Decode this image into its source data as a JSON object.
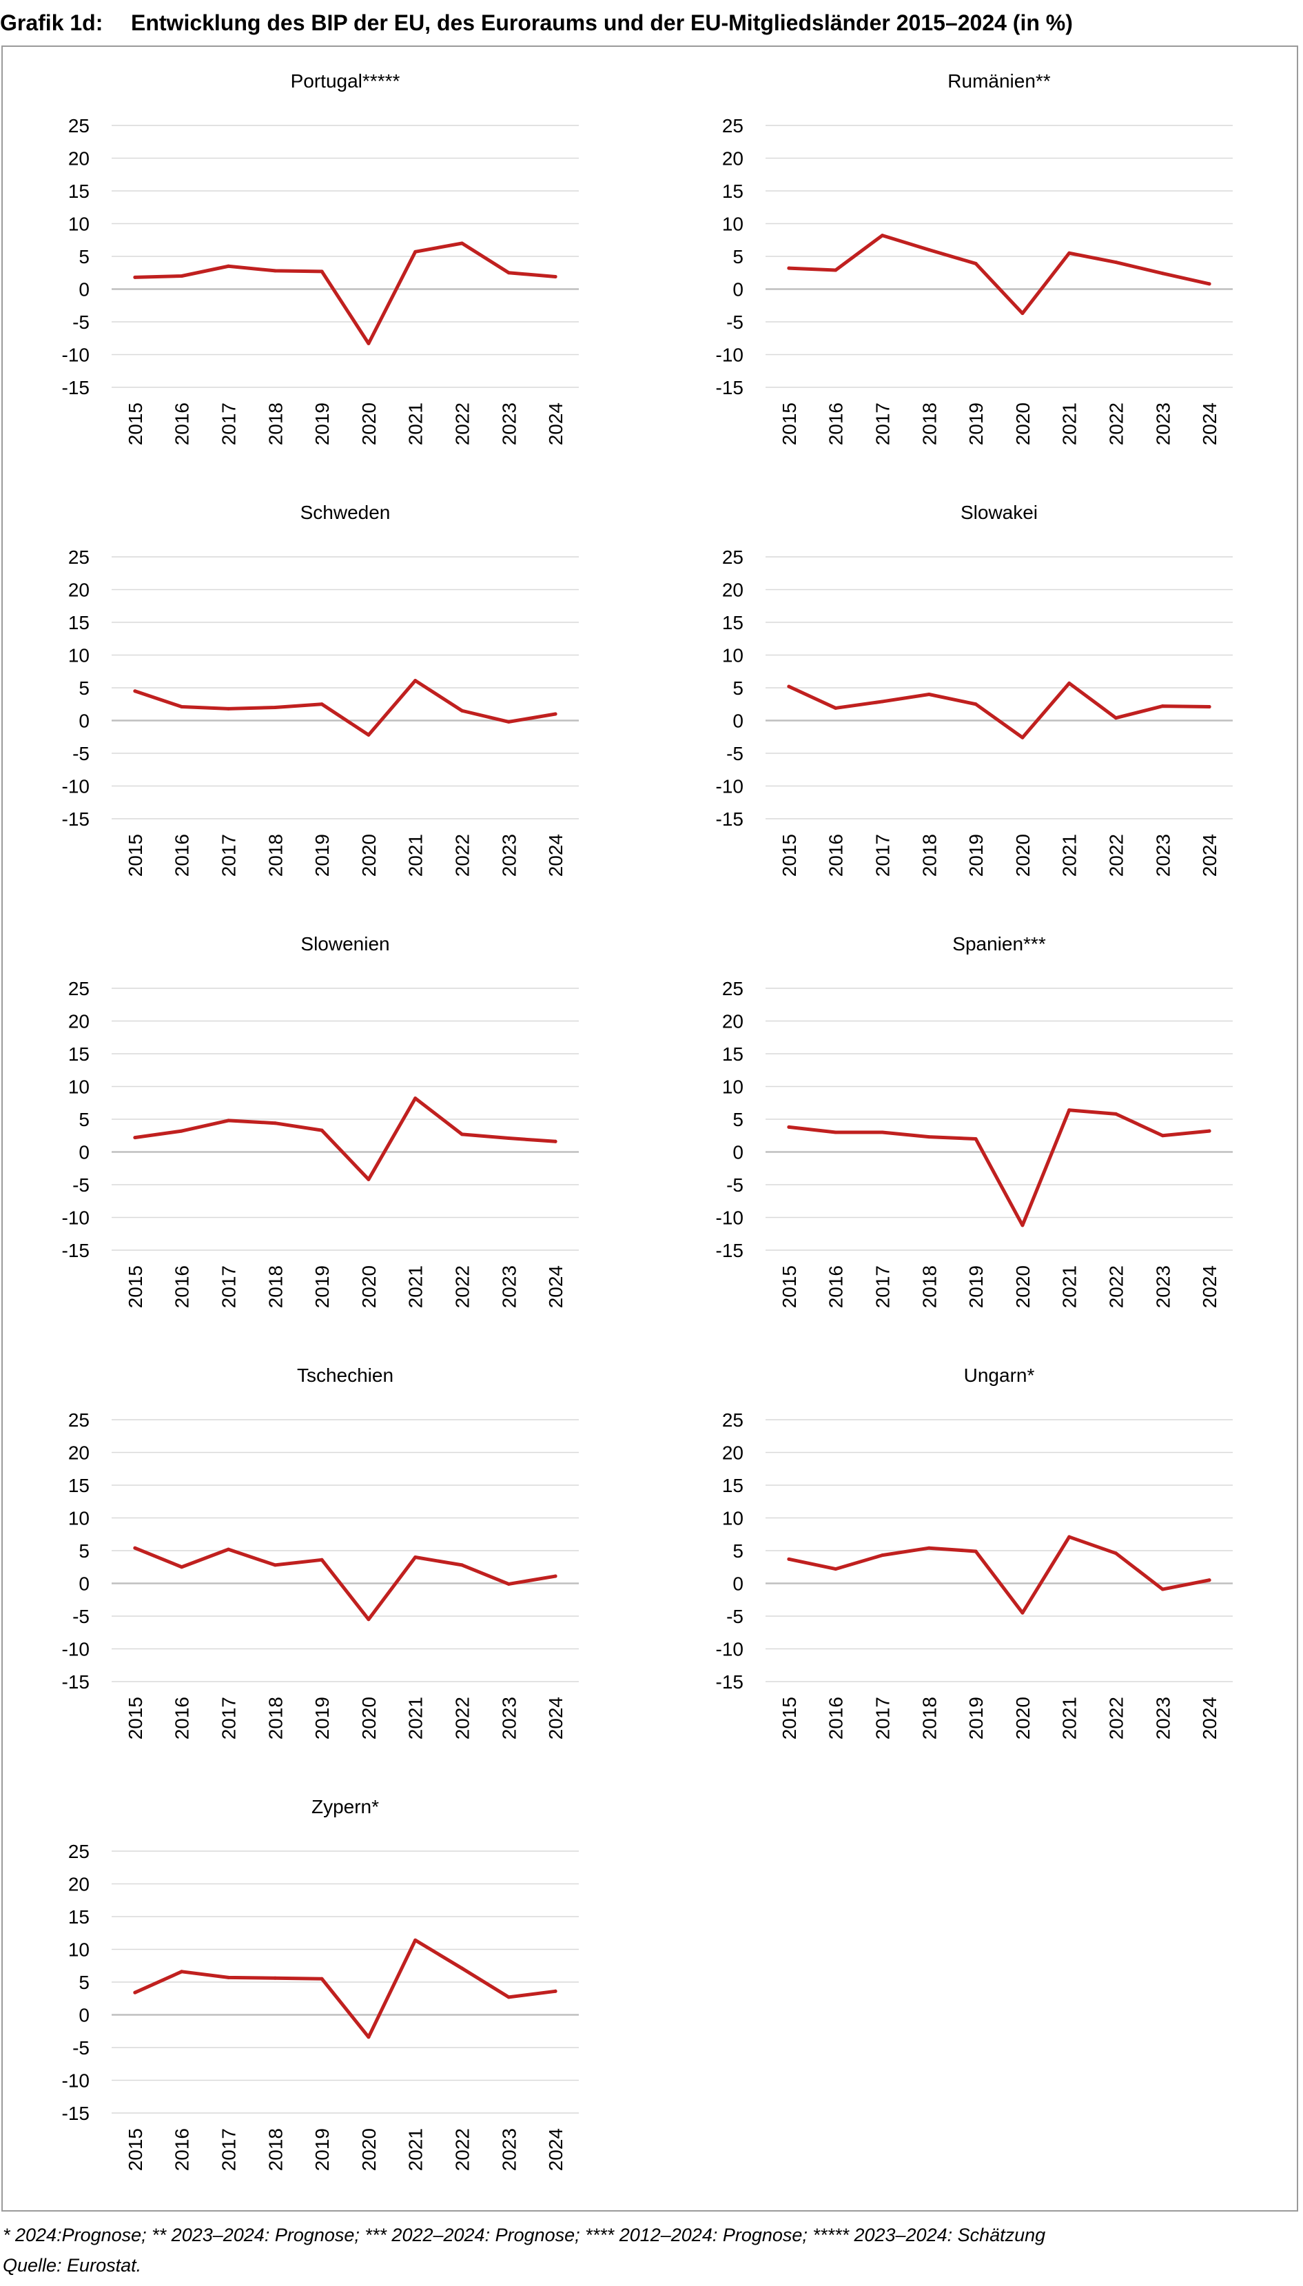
{
  "header": {
    "label": "Grafik 1d:",
    "title": "Entwicklung des BIP der EU, des Euroraums und der EU-Mitgliedsländer 2015–2024 (in %)"
  },
  "footnotes": {
    "note": "* 2024:Prognose; ** 2023–2024: Prognose; *** 2022–2024: Prognose; **** 2012–2024: Prognose; ***** 2023–2024: Schätzung",
    "source": "Quelle: Eurostat."
  },
  "colors": {
    "line": "#c0201f",
    "grid": "#d9d9d9",
    "axis": "#bfbfbf"
  },
  "chart_data": [
    {
      "type": "line",
      "title": "Portugal*****",
      "x": [
        "2015",
        "2016",
        "2017",
        "2018",
        "2019",
        "2020",
        "2021",
        "2022",
        "2023",
        "2024"
      ],
      "values": [
        1.8,
        2.0,
        3.5,
        2.8,
        2.7,
        -8.3,
        5.7,
        7.0,
        2.5,
        1.9
      ],
      "ylim": [
        -15,
        25
      ],
      "yticks": [
        25,
        20,
        15,
        10,
        5,
        0,
        -5,
        -10,
        -15
      ]
    },
    {
      "type": "line",
      "title": "Rumänien**",
      "x": [
        "2015",
        "2016",
        "2017",
        "2018",
        "2019",
        "2020",
        "2021",
        "2022",
        "2023",
        "2024"
      ],
      "values": [
        3.2,
        2.9,
        8.2,
        6.0,
        3.9,
        -3.7,
        5.5,
        4.1,
        2.4,
        0.8
      ],
      "ylim": [
        -15,
        25
      ],
      "yticks": [
        25,
        20,
        15,
        10,
        5,
        0,
        -5,
        -10,
        -15
      ]
    },
    {
      "type": "line",
      "title": "Schweden",
      "x": [
        "2015",
        "2016",
        "2017",
        "2018",
        "2019",
        "2020",
        "2021",
        "2022",
        "2023",
        "2024"
      ],
      "values": [
        4.5,
        2.1,
        1.8,
        2.0,
        2.5,
        -2.2,
        6.1,
        1.5,
        -0.2,
        1.0
      ],
      "ylim": [
        -15,
        25
      ],
      "yticks": [
        25,
        20,
        15,
        10,
        5,
        0,
        -5,
        -10,
        -15
      ]
    },
    {
      "type": "line",
      "title": "Slowakei",
      "x": [
        "2015",
        "2016",
        "2017",
        "2018",
        "2019",
        "2020",
        "2021",
        "2022",
        "2023",
        "2024"
      ],
      "values": [
        5.2,
        1.9,
        2.9,
        4.0,
        2.5,
        -2.6,
        5.7,
        0.4,
        2.2,
        2.1
      ],
      "ylim": [
        -15,
        25
      ],
      "yticks": [
        25,
        20,
        15,
        10,
        5,
        0,
        -5,
        -10,
        -15
      ]
    },
    {
      "type": "line",
      "title": "Slowenien",
      "x": [
        "2015",
        "2016",
        "2017",
        "2018",
        "2019",
        "2020",
        "2021",
        "2022",
        "2023",
        "2024"
      ],
      "values": [
        2.2,
        3.2,
        4.8,
        4.4,
        3.3,
        -4.2,
        8.2,
        2.7,
        2.1,
        1.6
      ],
      "ylim": [
        -15,
        25
      ],
      "yticks": [
        25,
        20,
        15,
        10,
        5,
        0,
        -5,
        -10,
        -15
      ]
    },
    {
      "type": "line",
      "title": "Spanien***",
      "x": [
        "2015",
        "2016",
        "2017",
        "2018",
        "2019",
        "2020",
        "2021",
        "2022",
        "2023",
        "2024"
      ],
      "values": [
        3.8,
        3.0,
        3.0,
        2.3,
        2.0,
        -11.2,
        6.4,
        5.8,
        2.5,
        3.2
      ],
      "ylim": [
        -15,
        25
      ],
      "yticks": [
        25,
        20,
        15,
        10,
        5,
        0,
        -5,
        -10,
        -15
      ]
    },
    {
      "type": "line",
      "title": "Tschechien",
      "x": [
        "2015",
        "2016",
        "2017",
        "2018",
        "2019",
        "2020",
        "2021",
        "2022",
        "2023",
        "2024"
      ],
      "values": [
        5.4,
        2.5,
        5.2,
        2.8,
        3.6,
        -5.5,
        4.0,
        2.8,
        -0.1,
        1.1
      ],
      "ylim": [
        -15,
        25
      ],
      "yticks": [
        25,
        20,
        15,
        10,
        5,
        0,
        -5,
        -10,
        -15
      ]
    },
    {
      "type": "line",
      "title": "Ungarn*",
      "x": [
        "2015",
        "2016",
        "2017",
        "2018",
        "2019",
        "2020",
        "2021",
        "2022",
        "2023",
        "2024"
      ],
      "values": [
        3.7,
        2.2,
        4.3,
        5.4,
        4.9,
        -4.5,
        7.1,
        4.6,
        -0.9,
        0.5
      ],
      "ylim": [
        -15,
        25
      ],
      "yticks": [
        25,
        20,
        15,
        10,
        5,
        0,
        -5,
        -10,
        -15
      ]
    },
    {
      "type": "line",
      "title": "Zypern*",
      "x": [
        "2015",
        "2016",
        "2017",
        "2018",
        "2019",
        "2020",
        "2021",
        "2022",
        "2023",
        "2024"
      ],
      "values": [
        3.4,
        6.6,
        5.7,
        5.6,
        5.5,
        -3.4,
        11.4,
        7.1,
        2.7,
        3.6
      ],
      "ylim": [
        -15,
        25
      ],
      "yticks": [
        25,
        20,
        15,
        10,
        5,
        0,
        -5,
        -10,
        -15
      ]
    }
  ]
}
